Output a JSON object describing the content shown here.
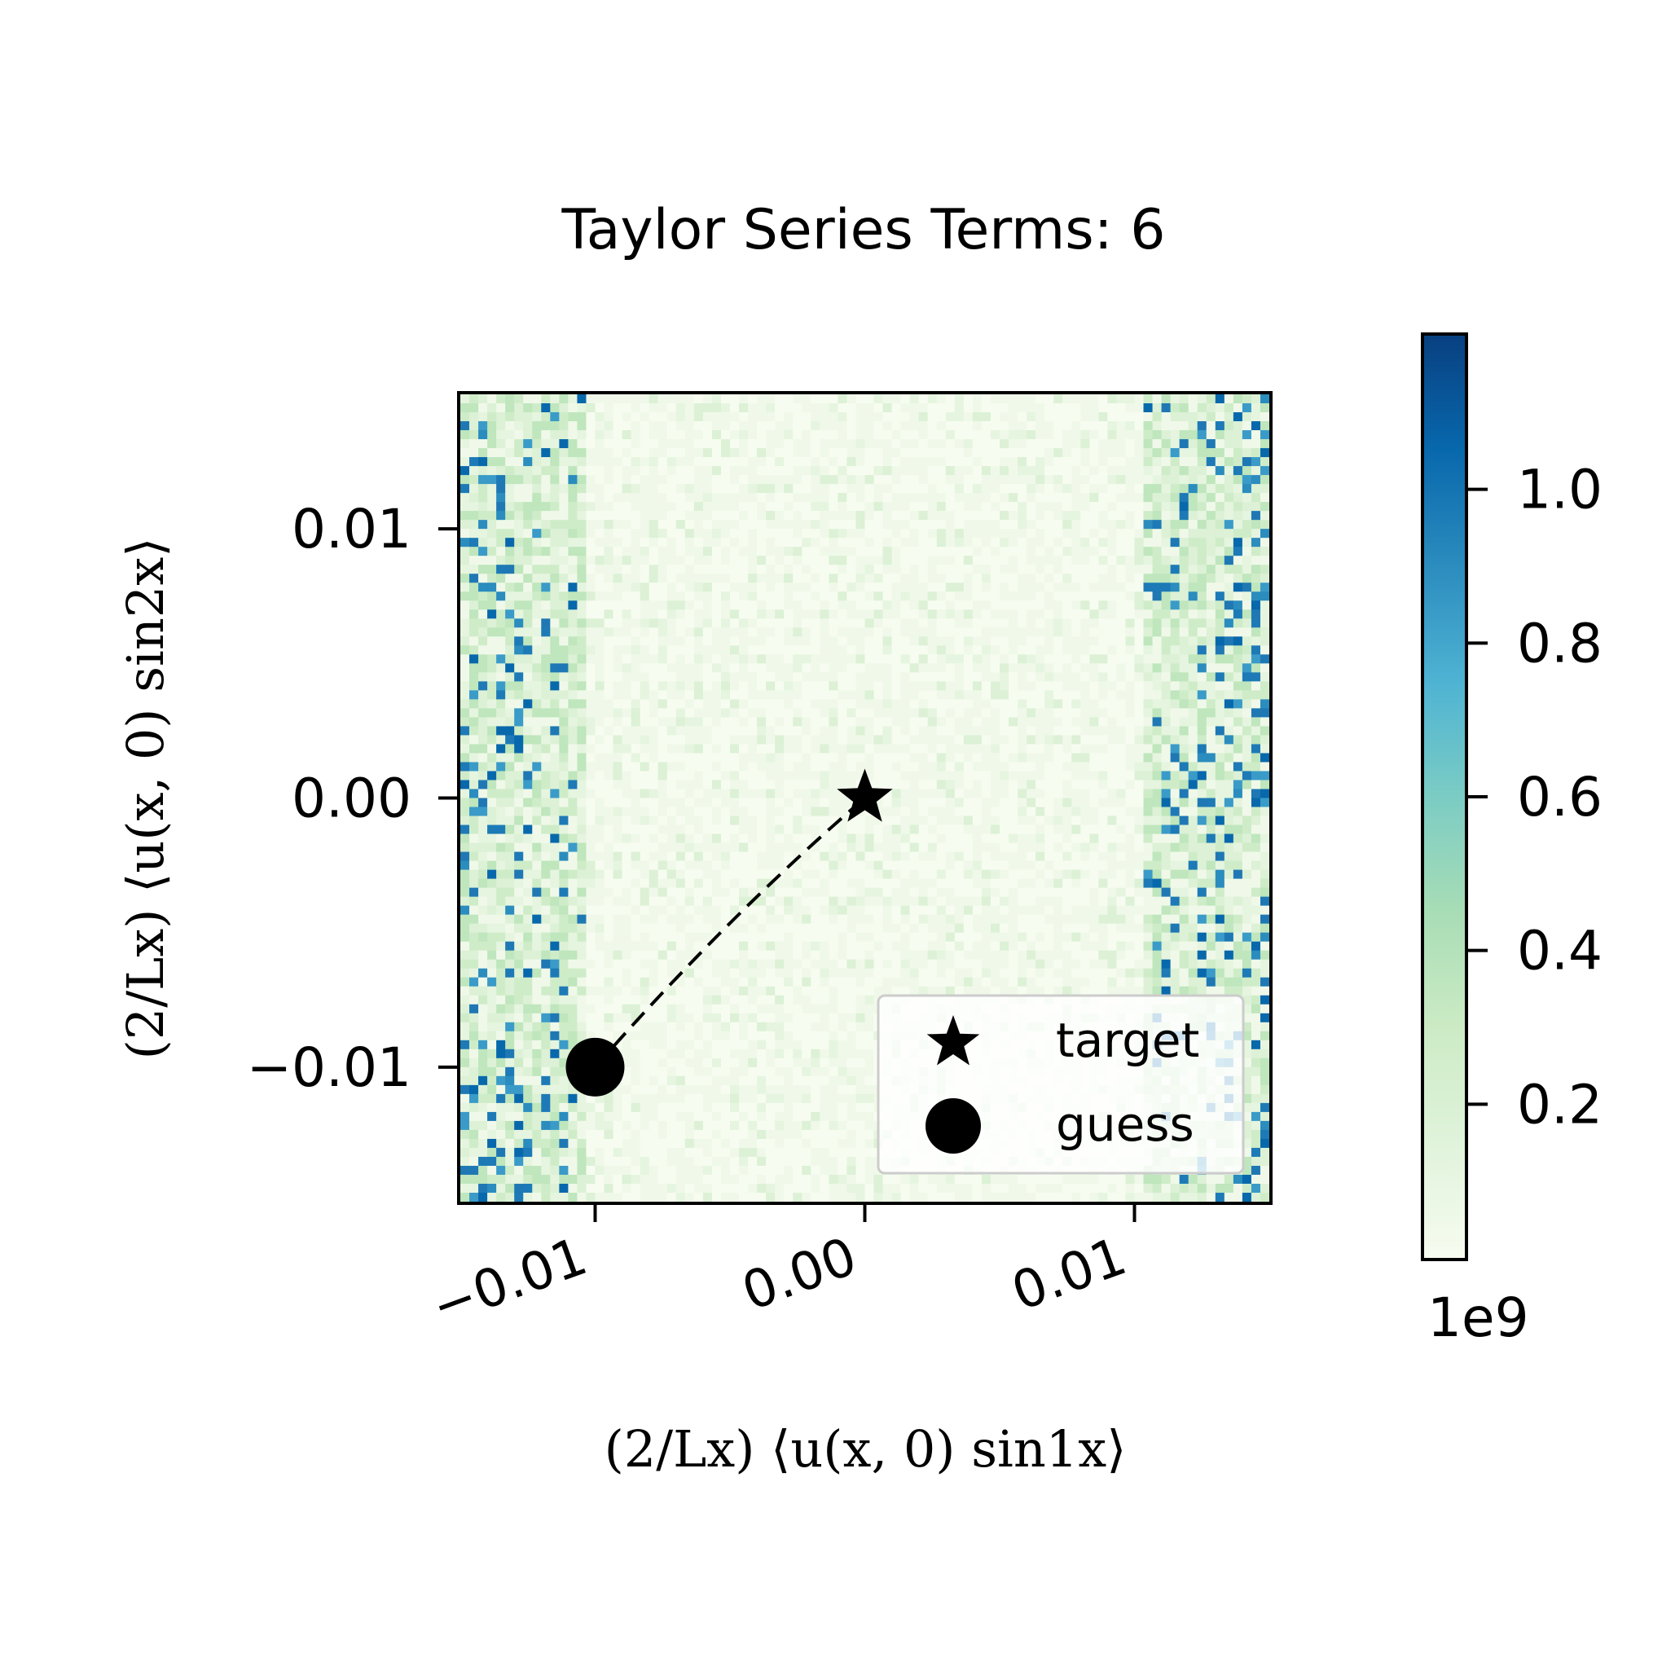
{
  "chart_data": {
    "type": "heatmap",
    "title": "Taylor Series Terms: 6",
    "xlabel": "(2/Lx) ⟨u(x, 0) sin1x⟩",
    "ylabel": "(2/Lx) ⟨u(x, 0) sin2x⟩",
    "xlim": [
      -0.015,
      0.015
    ],
    "ylim": [
      -0.015,
      0.015
    ],
    "xticks": [
      -0.01,
      0.0,
      0.01
    ],
    "yticks": [
      -0.01,
      0.0,
      0.01
    ],
    "xtick_labels": [
      "−0.01",
      "0.00",
      "0.01"
    ],
    "ytick_labels": [
      "0.01",
      "0.00",
      "−0.01"
    ],
    "grid": false,
    "colormap": "GnBu",
    "colorbar": {
      "ticks": [
        0.2,
        0.4,
        0.6,
        0.8,
        1.0
      ],
      "tick_labels": [
        "0.2",
        "0.4",
        "0.6",
        "0.8",
        "1.0"
      ],
      "range": [
        0.0,
        1.2
      ],
      "offset_text": "1e9"
    },
    "heatmap_grid": {
      "nx": 90,
      "ny": 90,
      "description_of_pattern": "low values in center, high values near left and right edges"
    },
    "points": [
      {
        "name": "target",
        "x": 0.0,
        "y": 0.0,
        "marker": "star"
      },
      {
        "name": "guess",
        "x": -0.01,
        "y": -0.01,
        "marker": "circle"
      }
    ],
    "connector": {
      "from": "guess",
      "to": "target",
      "style": "dashed"
    },
    "legend": {
      "position": "lower-right",
      "entries": [
        "target",
        "guess"
      ]
    }
  },
  "colors": {
    "low": "#f7fcf0",
    "mid": "#a8ddb5",
    "high": "#2b8cbe",
    "max": "#084081",
    "markers": "#000000"
  }
}
